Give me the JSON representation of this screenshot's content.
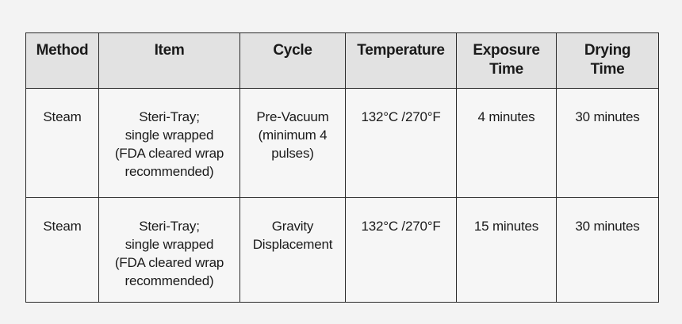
{
  "table": {
    "header": [
      [
        "Method"
      ],
      [
        "Item"
      ],
      [
        "Cycle"
      ],
      [
        "Temperature"
      ],
      [
        "Exposure",
        "Time"
      ],
      [
        "Drying",
        "Time"
      ]
    ],
    "rows": [
      [
        [
          "Steam"
        ],
        [
          "Steri-Tray;",
          "single wrapped",
          "(FDA cleared wrap",
          "recommended)"
        ],
        [
          "Pre-Vacuum",
          "(minimum 4",
          "pulses)"
        ],
        [
          "132°C /270°F"
        ],
        [
          "4 minutes"
        ],
        [
          "30 minutes"
        ]
      ],
      [
        [
          "Steam"
        ],
        [
          "Steri-Tray;",
          "single wrapped",
          "(FDA cleared wrap",
          "recommended)"
        ],
        [
          "Gravity",
          "Displacement"
        ],
        [
          "132°C /270°F"
        ],
        [
          "15 minutes"
        ],
        [
          "30 minutes"
        ]
      ]
    ]
  }
}
